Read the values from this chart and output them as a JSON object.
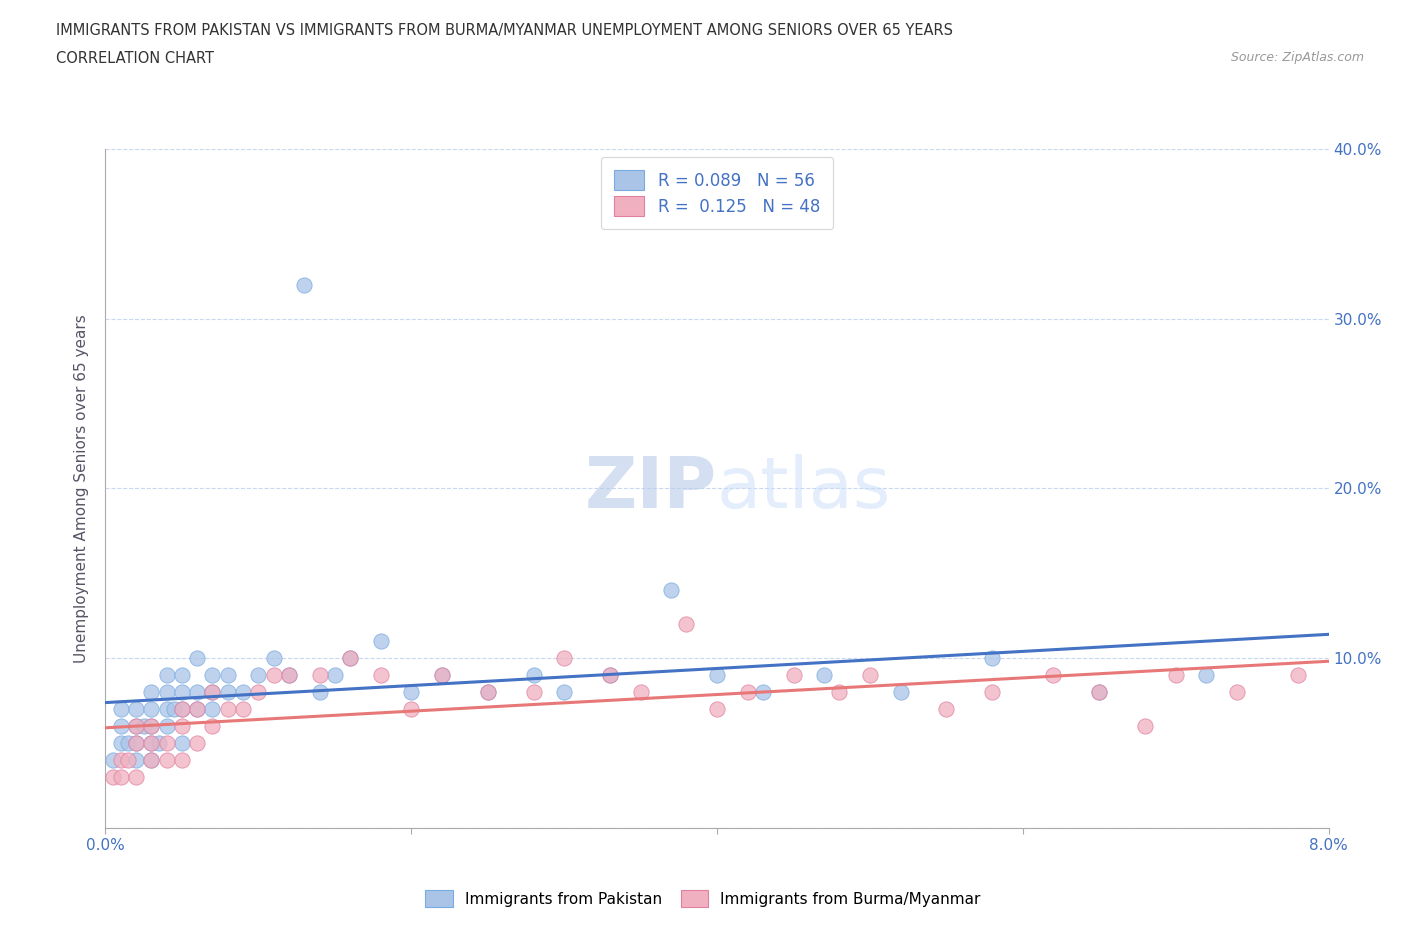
{
  "title_line1": "IMMIGRANTS FROM PAKISTAN VS IMMIGRANTS FROM BURMA/MYANMAR UNEMPLOYMENT AMONG SENIORS OVER 65 YEARS",
  "title_line2": "CORRELATION CHART",
  "source": "Source: ZipAtlas.com",
  "watermark": "ZIPatlas",
  "ylabel": "Unemployment Among Seniors over 65 years",
  "xlim": [
    0.0,
    0.08
  ],
  "ylim": [
    0.0,
    0.4
  ],
  "pakistan_color": "#aac4e8",
  "pakistan_edge_color": "#7aabe0",
  "burma_color": "#f0b0c0",
  "burma_edge_color": "#e080a0",
  "pakistan_line_color": "#4472c4",
  "burma_line_color": "#e87878",
  "pakistan_R": 0.089,
  "pakistan_N": 56,
  "burma_R": 0.125,
  "burma_N": 48,
  "pakistan_scatter_x": [
    0.0005,
    0.001,
    0.001,
    0.001,
    0.0015,
    0.002,
    0.002,
    0.002,
    0.002,
    0.0025,
    0.003,
    0.003,
    0.003,
    0.003,
    0.003,
    0.0035,
    0.004,
    0.004,
    0.004,
    0.004,
    0.0045,
    0.005,
    0.005,
    0.005,
    0.005,
    0.006,
    0.006,
    0.006,
    0.007,
    0.007,
    0.007,
    0.008,
    0.008,
    0.009,
    0.01,
    0.011,
    0.012,
    0.013,
    0.014,
    0.015,
    0.016,
    0.018,
    0.02,
    0.022,
    0.025,
    0.028,
    0.03,
    0.033,
    0.037,
    0.04,
    0.043,
    0.047,
    0.052,
    0.058,
    0.065,
    0.072
  ],
  "pakistan_scatter_y": [
    0.04,
    0.05,
    0.06,
    0.07,
    0.05,
    0.04,
    0.05,
    0.06,
    0.07,
    0.06,
    0.04,
    0.05,
    0.06,
    0.07,
    0.08,
    0.05,
    0.06,
    0.07,
    0.08,
    0.09,
    0.07,
    0.05,
    0.07,
    0.08,
    0.09,
    0.07,
    0.08,
    0.1,
    0.07,
    0.08,
    0.09,
    0.08,
    0.09,
    0.08,
    0.09,
    0.1,
    0.09,
    0.32,
    0.08,
    0.09,
    0.1,
    0.11,
    0.08,
    0.09,
    0.08,
    0.09,
    0.08,
    0.09,
    0.14,
    0.09,
    0.08,
    0.09,
    0.08,
    0.1,
    0.08,
    0.09
  ],
  "burma_scatter_x": [
    0.0005,
    0.001,
    0.001,
    0.0015,
    0.002,
    0.002,
    0.002,
    0.003,
    0.003,
    0.003,
    0.004,
    0.004,
    0.005,
    0.005,
    0.005,
    0.006,
    0.006,
    0.007,
    0.007,
    0.008,
    0.009,
    0.01,
    0.011,
    0.012,
    0.014,
    0.016,
    0.018,
    0.02,
    0.022,
    0.025,
    0.028,
    0.03,
    0.033,
    0.035,
    0.038,
    0.04,
    0.042,
    0.045,
    0.048,
    0.05,
    0.055,
    0.058,
    0.062,
    0.065,
    0.068,
    0.07,
    0.074,
    0.078
  ],
  "burma_scatter_y": [
    0.03,
    0.03,
    0.04,
    0.04,
    0.03,
    0.05,
    0.06,
    0.04,
    0.05,
    0.06,
    0.04,
    0.05,
    0.04,
    0.06,
    0.07,
    0.05,
    0.07,
    0.06,
    0.08,
    0.07,
    0.07,
    0.08,
    0.09,
    0.09,
    0.09,
    0.1,
    0.09,
    0.07,
    0.09,
    0.08,
    0.08,
    0.1,
    0.09,
    0.08,
    0.12,
    0.07,
    0.08,
    0.09,
    0.08,
    0.09,
    0.07,
    0.08,
    0.09,
    0.08,
    0.06,
    0.09,
    0.08,
    0.09
  ],
  "background_color": "#ffffff",
  "grid_color": "#c8d8ee",
  "tick_color": "#4472c4",
  "ylabel_color": "#555566"
}
